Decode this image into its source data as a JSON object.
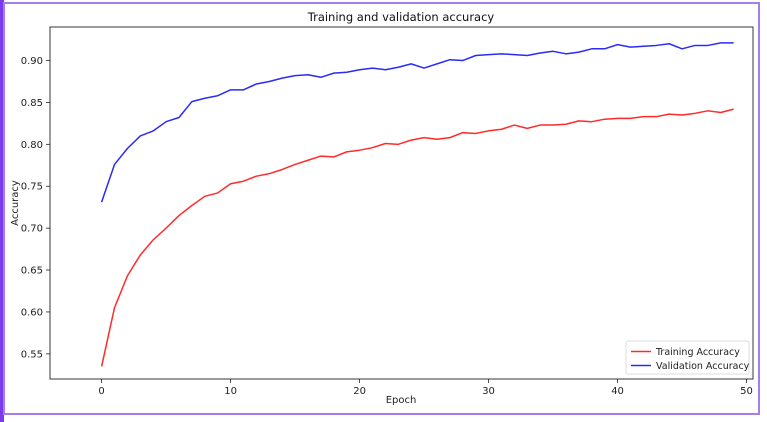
{
  "chart_data": {
    "type": "line",
    "title": "Training and validation accuracy",
    "xlabel": "Epoch",
    "ylabel": "Accuracy",
    "xlim": [
      -4,
      50.5
    ],
    "ylim": [
      0.52,
      0.94
    ],
    "xticks": [
      0,
      10,
      20,
      30,
      40,
      50
    ],
    "yticks": [
      0.55,
      0.6,
      0.65,
      0.7,
      0.75,
      0.8,
      0.85,
      0.9
    ],
    "grid": false,
    "legend_position": "lower-right",
    "x": [
      0,
      1,
      2,
      3,
      4,
      5,
      6,
      7,
      8,
      9,
      10,
      11,
      12,
      13,
      14,
      15,
      16,
      17,
      18,
      19,
      20,
      21,
      22,
      23,
      24,
      25,
      26,
      27,
      28,
      29,
      30,
      31,
      32,
      33,
      34,
      35,
      36,
      37,
      38,
      39,
      40,
      41,
      42,
      43,
      44,
      45,
      46,
      47,
      48,
      49
    ],
    "series": [
      {
        "name": "Training Accuracy",
        "color": "#ff2a2a",
        "values": [
          0.535,
          0.605,
          0.643,
          0.668,
          0.686,
          0.7,
          0.715,
          0.727,
          0.738,
          0.742,
          0.753,
          0.756,
          0.762,
          0.765,
          0.77,
          0.776,
          0.781,
          0.786,
          0.785,
          0.791,
          0.793,
          0.796,
          0.801,
          0.8,
          0.805,
          0.808,
          0.806,
          0.808,
          0.814,
          0.813,
          0.816,
          0.818,
          0.823,
          0.819,
          0.823,
          0.823,
          0.824,
          0.828,
          0.827,
          0.83,
          0.831,
          0.831,
          0.833,
          0.833,
          0.836,
          0.835,
          0.837,
          0.84,
          0.838,
          0.842
        ]
      },
      {
        "name": "Validation Accuracy",
        "color": "#2b2bf5",
        "values": [
          0.731,
          0.776,
          0.795,
          0.81,
          0.816,
          0.827,
          0.832,
          0.851,
          0.855,
          0.858,
          0.865,
          0.865,
          0.872,
          0.875,
          0.879,
          0.882,
          0.883,
          0.88,
          0.885,
          0.886,
          0.889,
          0.891,
          0.889,
          0.892,
          0.896,
          0.891,
          0.896,
          0.901,
          0.9,
          0.906,
          0.907,
          0.908,
          0.907,
          0.906,
          0.909,
          0.911,
          0.908,
          0.91,
          0.914,
          0.914,
          0.919,
          0.916,
          0.917,
          0.918,
          0.92,
          0.914,
          0.918,
          0.918,
          0.921,
          0.921
        ]
      }
    ]
  }
}
